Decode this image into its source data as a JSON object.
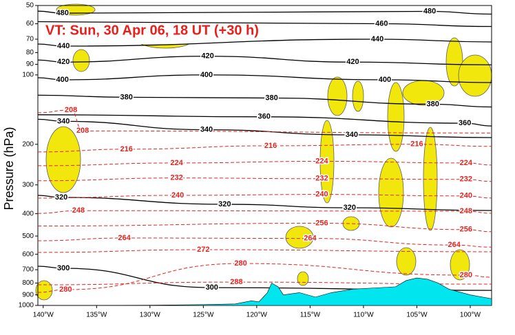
{
  "chart_data": {
    "type": "cross-section",
    "title": "VT:  Sun, 30 Apr 06, 18 UT (+30 h)",
    "y_label": "Pressure (hPa)",
    "y_log": true,
    "xlim": [
      -140.5,
      -98
    ],
    "xticks": [
      {
        "value": -140,
        "label": "140°W"
      },
      {
        "value": -135,
        "label": "135°W"
      },
      {
        "value": -130,
        "label": "130°W"
      },
      {
        "value": -125,
        "label": "125°W"
      },
      {
        "value": -120,
        "label": "120°W"
      },
      {
        "value": -115,
        "label": "115°W"
      },
      {
        "value": -110,
        "label": "110°W"
      },
      {
        "value": -105,
        "label": "105°W"
      },
      {
        "value": -100,
        "label": "100°W"
      }
    ],
    "ylim": [
      1000,
      50
    ],
    "yticks": [
      1000,
      900,
      800,
      700,
      600,
      500,
      400,
      300,
      200,
      100,
      90,
      80,
      70,
      60,
      50
    ],
    "contours": [
      {
        "name": "theta",
        "color": "#000000",
        "values": [
          480,
          480,
          460,
          440,
          440,
          420,
          420,
          420,
          400,
          400,
          400,
          380,
          380,
          380,
          360,
          360,
          340,
          340,
          340,
          320,
          320,
          320,
          300,
          300
        ],
        "x": [
          -138.2,
          -103.8,
          -108.3,
          -138.1,
          -108.7,
          -138.1,
          -124.6,
          -111.0,
          -138.2,
          -124.7,
          -108.0,
          -132.2,
          -118.6,
          -103.5,
          -119.3,
          -100.5,
          -138.1,
          -124.7,
          -111.1,
          -138.3,
          -123.0,
          -111.3,
          -138.1,
          -124.2
        ],
        "p": [
          54,
          53,
          60,
          75,
          70,
          88,
          83,
          88,
          105,
          100,
          105,
          125,
          126,
          134,
          152,
          162,
          159,
          173,
          182,
          340,
          364,
          377,
          690,
          837
        ]
      },
      {
        "name": "temperature",
        "color": "#e8201c",
        "values": [
          208,
          208,
          216,
          216,
          216,
          224,
          224,
          224,
          232,
          232,
          232,
          240,
          240,
          240,
          248,
          248,
          256,
          256,
          264,
          264,
          264,
          272,
          280,
          280,
          280,
          288
        ],
        "x": [
          -137.4,
          -136.3,
          -132.2,
          -118.7,
          -105.0,
          -127.5,
          -113.9,
          -100.4,
          -127.5,
          -113.9,
          -100.4,
          -127.4,
          -113.9,
          -100.4,
          -136.7,
          -100.4,
          -113.9,
          -100.4,
          -132.4,
          -115.0,
          -101.5,
          -125.0,
          -121.5,
          -137.9,
          -100.4,
          -121.9
        ],
        "p": [
          142,
          175,
          210,
          203,
          200,
          241,
          237,
          241,
          280,
          282,
          284,
          333,
          330,
          335,
          388,
          390,
          440,
          469,
          510,
          512,
          547,
          573,
          658,
          854,
          739,
          792
        ]
      }
    ],
    "terrain": {
      "color": "#00e5ee",
      "x": [
        -140.5,
        -130,
        -125,
        -122,
        -120.5,
        -119.8,
        -119,
        -118.6,
        -118,
        -117.5,
        -116,
        -114.5,
        -113,
        -111,
        -109,
        -107,
        -106,
        -105,
        -104,
        -103,
        -102,
        -100,
        -98
      ],
      "p": [
        1000,
        998,
        992,
        985,
        955,
        965,
        880,
        800,
        830,
        900,
        880,
        920,
        880,
        850,
        840,
        830,
        780,
        760,
        770,
        800,
        850,
        900,
        935
      ]
    }
  }
}
